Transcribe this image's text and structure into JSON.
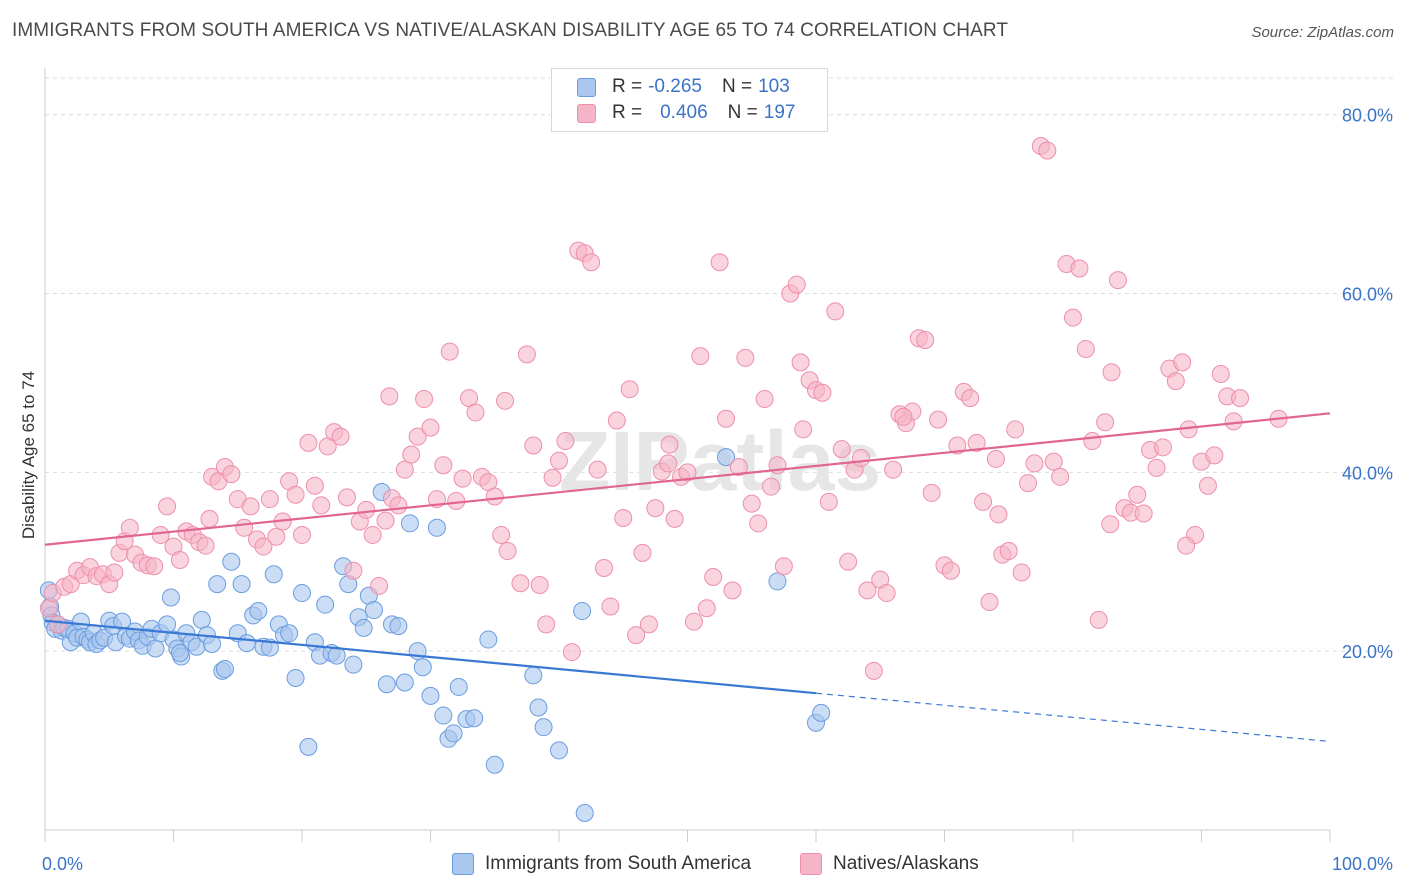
{
  "header": {
    "title": "IMMIGRANTS FROM SOUTH AMERICA VS NATIVE/ALASKAN DISABILITY AGE 65 TO 74 CORRELATION CHART",
    "source": "Source: ZipAtlas.com"
  },
  "legend": {
    "row1": {
      "r_label": "R =",
      "r_value": "-0.265",
      "n_label": "N =",
      "n_value": "103"
    },
    "row2": {
      "r_label": "R =",
      "r_value": "0.406",
      "n_label": "N =",
      "n_value": "197"
    }
  },
  "bottom_legend": {
    "series1": "Immigrants from South America",
    "series2": "Natives/Alaskans"
  },
  "watermark": "ZIPatlas",
  "colors": {
    "blue_fill": "#a9c7ef",
    "blue_stroke": "#6a9de0",
    "blue_line": "#3a78d4",
    "pink_fill": "#f5b5c8",
    "pink_stroke": "#ee8fab",
    "pink_line": "#e06690",
    "tick_text": "#3b73c8",
    "grid": "#dddddd"
  },
  "chart_data": {
    "type": "scatter",
    "xlabel": "",
    "ylabel": "Disability Age 65 to 74",
    "xlim": [
      0,
      100
    ],
    "ylim": [
      0,
      85
    ],
    "x_tick_labels": [
      "0.0%",
      "100.0%"
    ],
    "y_ticks": [
      20,
      40,
      60,
      80
    ],
    "y_tick_labels": [
      "20.0%",
      "40.0%",
      "60.0%",
      "80.0%"
    ],
    "grid": "horizontal dashed",
    "series": [
      {
        "name": "Immigrants from South America",
        "r": -0.265,
        "n": 103,
        "trend": {
          "x0": 0,
          "y0": 23.4,
          "x1": 60,
          "y1": 15.3,
          "dash_to_x": 100,
          "dash_to_y": 9.9
        },
        "points": [
          [
            0.3,
            26.8
          ],
          [
            0.4,
            25.0
          ],
          [
            0.5,
            24.0
          ],
          [
            0.6,
            23.2
          ],
          [
            0.8,
            22.5
          ],
          [
            1.0,
            23.0
          ],
          [
            1.3,
            22.3
          ],
          [
            1.5,
            22.6
          ],
          [
            1.8,
            22.5
          ],
          [
            2.0,
            21.0
          ],
          [
            2.3,
            22.0
          ],
          [
            2.5,
            21.5
          ],
          [
            2.8,
            23.3
          ],
          [
            3.0,
            21.6
          ],
          [
            3.3,
            21.3
          ],
          [
            3.5,
            21.0
          ],
          [
            3.8,
            22.0
          ],
          [
            4.0,
            20.8
          ],
          [
            4.3,
            21.2
          ],
          [
            4.6,
            21.5
          ],
          [
            5.0,
            23.4
          ],
          [
            5.3,
            22.8
          ],
          [
            5.5,
            21.0
          ],
          [
            6.0,
            23.3
          ],
          [
            6.3,
            21.7
          ],
          [
            6.6,
            21.4
          ],
          [
            7.0,
            22.2
          ],
          [
            7.3,
            21.2
          ],
          [
            7.6,
            20.6
          ],
          [
            8.0,
            21.6
          ],
          [
            8.3,
            22.5
          ],
          [
            8.6,
            20.3
          ],
          [
            9.0,
            22.0
          ],
          [
            9.5,
            23.0
          ],
          [
            9.8,
            26.0
          ],
          [
            10.0,
            21.3
          ],
          [
            10.3,
            20.3
          ],
          [
            10.6,
            19.4
          ],
          [
            11.0,
            22.0
          ],
          [
            11.4,
            21.0
          ],
          [
            11.8,
            20.5
          ],
          [
            12.2,
            23.5
          ],
          [
            12.6,
            21.8
          ],
          [
            13.0,
            20.8
          ],
          [
            13.4,
            27.5
          ],
          [
            13.8,
            17.8
          ],
          [
            14.0,
            18.0
          ],
          [
            14.5,
            30.0
          ],
          [
            15.0,
            22.0
          ],
          [
            15.3,
            27.5
          ],
          [
            15.7,
            20.9
          ],
          [
            16.2,
            24.0
          ],
          [
            16.6,
            24.5
          ],
          [
            17.0,
            20.5
          ],
          [
            17.5,
            20.4
          ],
          [
            17.8,
            28.6
          ],
          [
            18.2,
            23.0
          ],
          [
            18.6,
            21.8
          ],
          [
            19.0,
            22.0
          ],
          [
            19.5,
            17.0
          ],
          [
            20.0,
            26.5
          ],
          [
            20.5,
            9.3
          ],
          [
            21.0,
            21.0
          ],
          [
            21.4,
            19.5
          ],
          [
            21.8,
            25.2
          ],
          [
            22.3,
            19.8
          ],
          [
            22.7,
            19.5
          ],
          [
            23.2,
            29.5
          ],
          [
            23.6,
            27.5
          ],
          [
            24.0,
            18.5
          ],
          [
            24.4,
            23.8
          ],
          [
            24.8,
            22.6
          ],
          [
            25.2,
            26.2
          ],
          [
            25.6,
            24.6
          ],
          [
            26.2,
            37.8
          ],
          [
            26.6,
            16.3
          ],
          [
            27.0,
            23.0
          ],
          [
            27.5,
            22.8
          ],
          [
            28.0,
            16.5
          ],
          [
            28.4,
            34.3
          ],
          [
            29.0,
            20.0
          ],
          [
            29.4,
            18.2
          ],
          [
            30.0,
            15.0
          ],
          [
            30.5,
            33.8
          ],
          [
            31.0,
            12.8
          ],
          [
            31.4,
            10.2
          ],
          [
            31.8,
            10.8
          ],
          [
            32.2,
            16.0
          ],
          [
            32.8,
            12.4
          ],
          [
            33.4,
            12.5
          ],
          [
            34.5,
            21.3
          ],
          [
            35.0,
            7.3
          ],
          [
            38.0,
            17.3
          ],
          [
            38.4,
            13.7
          ],
          [
            38.8,
            11.5
          ],
          [
            40.0,
            8.9
          ],
          [
            41.8,
            24.5
          ],
          [
            42.0,
            1.9
          ],
          [
            53.0,
            41.7
          ],
          [
            57.0,
            27.8
          ],
          [
            60.0,
            12.0
          ],
          [
            60.4,
            13.1
          ],
          [
            10.5,
            19.8
          ]
        ]
      },
      {
        "name": "Natives/Alaskans",
        "r": 0.406,
        "n": 197,
        "trend": {
          "x0": 0,
          "y0": 31.9,
          "x1": 100,
          "y1": 46.6
        },
        "points": [
          [
            0.3,
            24.8
          ],
          [
            0.6,
            26.5
          ],
          [
            1.0,
            23.0
          ],
          [
            1.5,
            27.2
          ],
          [
            2.0,
            27.5
          ],
          [
            2.5,
            29.0
          ],
          [
            3.0,
            28.5
          ],
          [
            3.5,
            29.4
          ],
          [
            4.0,
            28.4
          ],
          [
            4.5,
            28.6
          ],
          [
            5.0,
            27.5
          ],
          [
            5.4,
            28.8
          ],
          [
            5.8,
            31.0
          ],
          [
            6.2,
            32.3
          ],
          [
            6.6,
            33.8
          ],
          [
            7.0,
            30.8
          ],
          [
            7.5,
            29.9
          ],
          [
            8.0,
            29.6
          ],
          [
            8.5,
            29.5
          ],
          [
            9.0,
            33.0
          ],
          [
            9.5,
            36.2
          ],
          [
            10.0,
            31.7
          ],
          [
            10.5,
            30.2
          ],
          [
            11.0,
            33.4
          ],
          [
            11.5,
            33.0
          ],
          [
            12.0,
            32.2
          ],
          [
            12.5,
            31.8
          ],
          [
            13.0,
            39.5
          ],
          [
            13.5,
            39.0
          ],
          [
            14.0,
            40.6
          ],
          [
            14.5,
            39.8
          ],
          [
            15.0,
            37.0
          ],
          [
            15.5,
            33.8
          ],
          [
            16.0,
            36.2
          ],
          [
            16.5,
            32.5
          ],
          [
            17.0,
            31.7
          ],
          [
            17.5,
            37.0
          ],
          [
            18.0,
            32.8
          ],
          [
            18.5,
            34.5
          ],
          [
            19.0,
            39.0
          ],
          [
            19.5,
            37.5
          ],
          [
            20.0,
            33.0
          ],
          [
            20.5,
            43.3
          ],
          [
            21.0,
            38.5
          ],
          [
            21.5,
            36.3
          ],
          [
            22.0,
            42.9
          ],
          [
            22.5,
            44.5
          ],
          [
            23.0,
            44.0
          ],
          [
            23.5,
            37.2
          ],
          [
            24.0,
            29.0
          ],
          [
            24.5,
            34.5
          ],
          [
            25.0,
            35.8
          ],
          [
            25.5,
            33.0
          ],
          [
            26.0,
            27.3
          ],
          [
            26.5,
            34.6
          ],
          [
            27.0,
            37.1
          ],
          [
            27.5,
            36.3
          ],
          [
            28.0,
            40.3
          ],
          [
            28.5,
            42.0
          ],
          [
            29.0,
            44.0
          ],
          [
            29.5,
            48.2
          ],
          [
            30.0,
            45.0
          ],
          [
            30.5,
            37.0
          ],
          [
            31.0,
            40.8
          ],
          [
            31.5,
            53.5
          ],
          [
            32.0,
            36.8
          ],
          [
            32.5,
            39.3
          ],
          [
            33.0,
            48.3
          ],
          [
            33.5,
            46.7
          ],
          [
            34.0,
            39.5
          ],
          [
            34.5,
            38.9
          ],
          [
            35.0,
            37.3
          ],
          [
            35.5,
            33.0
          ],
          [
            36.0,
            31.2
          ],
          [
            37.0,
            27.6
          ],
          [
            37.5,
            53.2
          ],
          [
            38.0,
            43.0
          ],
          [
            38.5,
            27.4
          ],
          [
            39.0,
            23.0
          ],
          [
            39.5,
            39.4
          ],
          [
            40.0,
            41.3
          ],
          [
            40.5,
            43.5
          ],
          [
            41.0,
            19.9
          ],
          [
            41.5,
            64.8
          ],
          [
            42.0,
            64.5
          ],
          [
            42.5,
            63.5
          ],
          [
            43.0,
            40.3
          ],
          [
            43.5,
            29.3
          ],
          [
            44.0,
            25.0
          ],
          [
            44.5,
            45.8
          ],
          [
            45.0,
            34.9
          ],
          [
            45.5,
            49.3
          ],
          [
            46.0,
            21.8
          ],
          [
            46.5,
            31.0
          ],
          [
            47.0,
            23.0
          ],
          [
            47.5,
            36.0
          ],
          [
            48.0,
            40.1
          ],
          [
            48.5,
            41.0
          ],
          [
            49.0,
            34.8
          ],
          [
            49.5,
            39.5
          ],
          [
            50.0,
            40.0
          ],
          [
            50.5,
            23.3
          ],
          [
            51.0,
            53.0
          ],
          [
            51.5,
            24.8
          ],
          [
            52.0,
            28.3
          ],
          [
            52.5,
            63.5
          ],
          [
            53.0,
            46.0
          ],
          [
            53.5,
            26.8
          ],
          [
            54.0,
            40.6
          ],
          [
            54.5,
            52.8
          ],
          [
            55.0,
            36.5
          ],
          [
            55.5,
            34.3
          ],
          [
            56.0,
            48.2
          ],
          [
            56.5,
            38.4
          ],
          [
            57.0,
            40.8
          ],
          [
            57.5,
            29.5
          ],
          [
            58.0,
            60.0
          ],
          [
            58.5,
            61.0
          ],
          [
            59.0,
            44.8
          ],
          [
            59.5,
            50.3
          ],
          [
            60.0,
            49.2
          ],
          [
            60.5,
            48.9
          ],
          [
            61.0,
            36.7
          ],
          [
            61.5,
            58.0
          ],
          [
            62.0,
            42.6
          ],
          [
            62.5,
            30.0
          ],
          [
            63.0,
            40.3
          ],
          [
            63.5,
            41.6
          ],
          [
            64.0,
            26.8
          ],
          [
            64.5,
            17.8
          ],
          [
            65.0,
            28.0
          ],
          [
            65.5,
            26.5
          ],
          [
            66.0,
            40.3
          ],
          [
            66.5,
            46.5
          ],
          [
            67.0,
            45.5
          ],
          [
            67.5,
            46.8
          ],
          [
            68.0,
            55.0
          ],
          [
            68.5,
            54.8
          ],
          [
            69.0,
            37.7
          ],
          [
            69.5,
            45.9
          ],
          [
            70.0,
            29.6
          ],
          [
            70.5,
            29.0
          ],
          [
            71.0,
            43.0
          ],
          [
            71.5,
            49.0
          ],
          [
            72.0,
            48.3
          ],
          [
            72.5,
            43.3
          ],
          [
            73.0,
            36.7
          ],
          [
            73.5,
            25.5
          ],
          [
            74.0,
            41.5
          ],
          [
            74.5,
            30.8
          ],
          [
            75.0,
            31.2
          ],
          [
            75.5,
            44.8
          ],
          [
            76.0,
            28.8
          ],
          [
            76.5,
            38.8
          ],
          [
            77.0,
            41.0
          ],
          [
            77.5,
            76.5
          ],
          [
            78.0,
            76.0
          ],
          [
            78.5,
            41.2
          ],
          [
            79.0,
            39.5
          ],
          [
            79.5,
            63.3
          ],
          [
            80.0,
            57.3
          ],
          [
            80.5,
            62.8
          ],
          [
            81.0,
            53.8
          ],
          [
            81.5,
            43.5
          ],
          [
            82.0,
            23.5
          ],
          [
            82.5,
            45.6
          ],
          [
            83.0,
            51.2
          ],
          [
            83.5,
            61.5
          ],
          [
            84.0,
            36.0
          ],
          [
            84.5,
            35.5
          ],
          [
            85.0,
            37.5
          ],
          [
            85.5,
            35.4
          ],
          [
            86.0,
            42.5
          ],
          [
            86.5,
            40.5
          ],
          [
            87.0,
            42.8
          ],
          [
            87.5,
            51.6
          ],
          [
            88.0,
            50.2
          ],
          [
            88.5,
            52.3
          ],
          [
            89.0,
            44.8
          ],
          [
            89.5,
            33.0
          ],
          [
            90.0,
            41.2
          ],
          [
            90.5,
            38.5
          ],
          [
            91.0,
            41.9
          ],
          [
            91.5,
            51.0
          ],
          [
            92.0,
            48.5
          ],
          [
            92.5,
            45.7
          ],
          [
            93.0,
            48.3
          ],
          [
            12.8,
            34.8
          ],
          [
            35.8,
            48.0
          ],
          [
            58.8,
            52.3
          ],
          [
            88.8,
            31.8
          ],
          [
            96.0,
            46.0
          ],
          [
            48.6,
            43.1
          ],
          [
            26.8,
            48.5
          ],
          [
            74.2,
            35.3
          ],
          [
            66.8,
            46.2
          ],
          [
            82.9,
            34.2
          ]
        ]
      }
    ]
  }
}
